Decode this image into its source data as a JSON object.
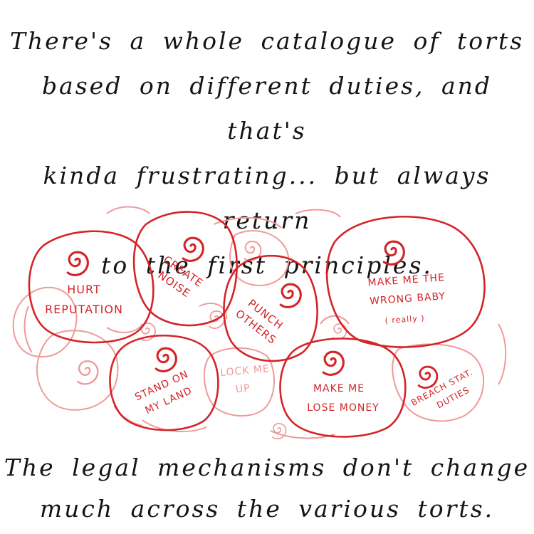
{
  "top_caption": {
    "lines": [
      "There's a whole catalogue of torts",
      "based on different duties, and that's",
      "kinda frustrating... but always return",
      "to the first principles."
    ]
  },
  "bottom_caption": {
    "lines": [
      "The legal mechanisms don't change",
      "much across the various torts."
    ]
  },
  "bubbles": {
    "hurt_reputation": [
      "HURT",
      "REPUTATION"
    ],
    "create_noise": [
      "CREATE",
      "NOISE"
    ],
    "punch_others": [
      "PUNCH",
      "OTHERS"
    ],
    "wrong_baby": [
      "MAKE ME THE",
      "WRONG BABY",
      "( really )"
    ],
    "stand_on_my_land": [
      "STAND ON",
      "MY LAND"
    ],
    "lock_me_up": [
      "LOCK ME",
      "UP"
    ],
    "lose_money": [
      "MAKE ME",
      "LOSE MONEY"
    ],
    "breach_duties": [
      "BREACH STAT.",
      "DUTIES"
    ]
  },
  "colors": {
    "ink": "#141414",
    "bubble_red": "#d42428",
    "faint_red": "#ef9a9a"
  },
  "icons": {
    "bubble_marker": "spiral-icon"
  }
}
